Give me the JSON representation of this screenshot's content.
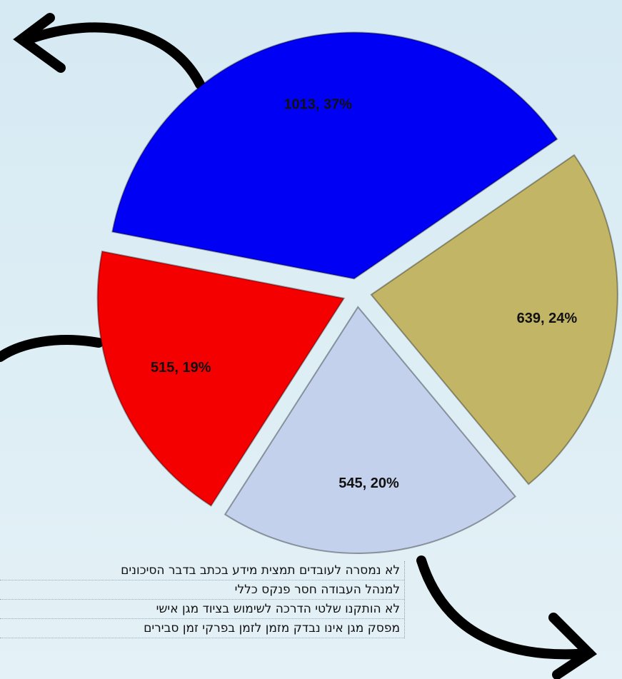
{
  "chart_data": {
    "type": "pie",
    "categories": [
      "לא נמסרה לעובדים תמצית מידע בכתב בדבר הסיכונים",
      "למנהל העבודה חסר פנקס כללי",
      "לא הותקנו שלטי הדרכה לשימוש בציוד מגן אישי",
      "מפסק מגן אינו נבדק מזמן לזמן בפרקי זמן סבירים"
    ],
    "values": [
      1013,
      639,
      545,
      515
    ],
    "value_labels": [
      "1013, 37%",
      "639, 24%",
      "545, 20%",
      "515, 19%"
    ],
    "colors": [
      "#0000f5",
      "#c2b565",
      "#c3d1ec",
      "#f50000"
    ]
  }
}
